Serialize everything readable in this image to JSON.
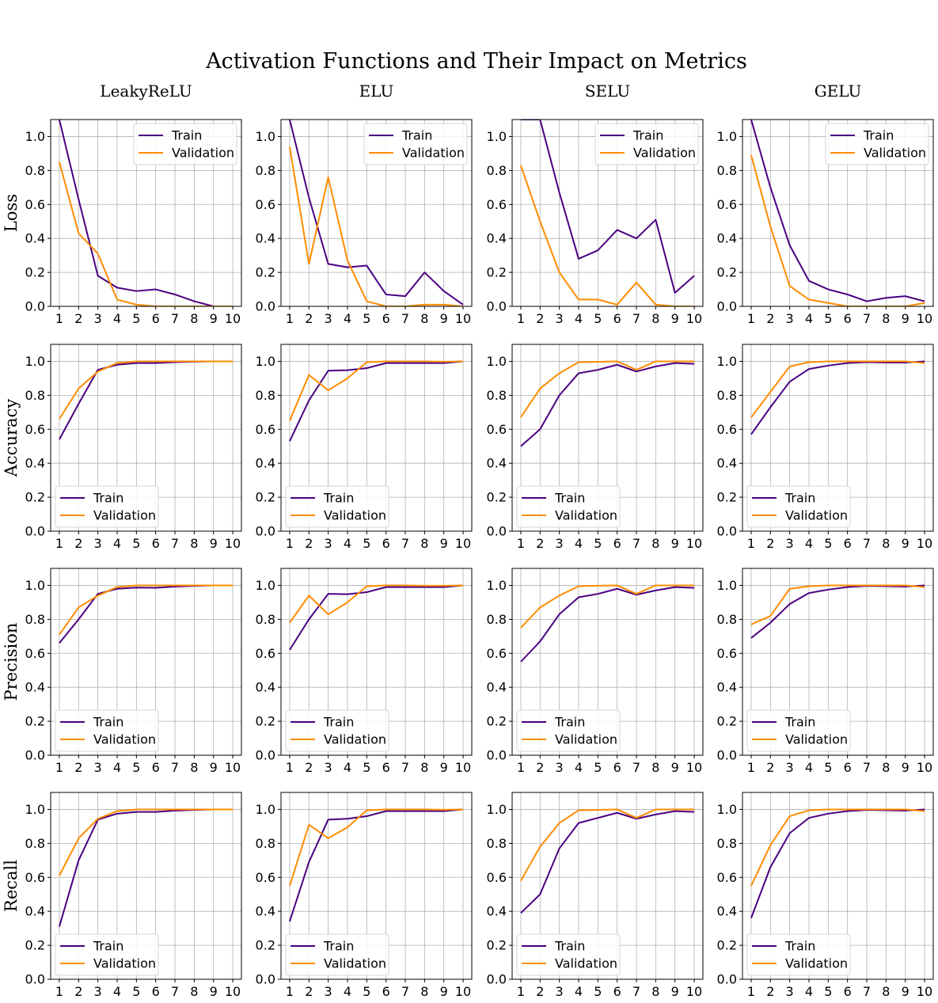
{
  "figure": {
    "title": "Activation Functions and Their Impact on Metrics",
    "columns": [
      "LeakyReLU",
      "ELU",
      "SELU",
      "GELU"
    ],
    "rows": [
      "Loss",
      "Accuracy",
      "Precision",
      "Recall"
    ]
  },
  "colors": {
    "train": "#4b0082",
    "validation": "#ff8c00",
    "grid": "#b0b0b0"
  },
  "legend": {
    "train": "Train",
    "validation": "Validation",
    "loss_position": "top-right",
    "other_position": "bottom-left"
  },
  "chart_data": [
    {
      "type": "line",
      "title": "LeakyReLU",
      "ylabel": "Loss",
      "x": [
        1,
        2,
        3,
        4,
        5,
        6,
        7,
        8,
        9,
        10
      ],
      "ylim": [
        0,
        1.1
      ],
      "grid": true,
      "series": [
        {
          "name": "Train",
          "values": [
            1.15,
            0.63,
            0.18,
            0.11,
            0.09,
            0.1,
            0.07,
            0.03,
            0.0,
            0.0
          ]
        },
        {
          "name": "Validation",
          "values": [
            0.85,
            0.43,
            0.31,
            0.04,
            0.01,
            0.0,
            0.0,
            0.0,
            0.0,
            0.0
          ]
        }
      ]
    },
    {
      "type": "line",
      "title": "ELU",
      "ylabel": "",
      "x": [
        1,
        2,
        3,
        4,
        5,
        6,
        7,
        8,
        9,
        10
      ],
      "ylim": [
        0,
        1.1
      ],
      "grid": true,
      "series": [
        {
          "name": "Train",
          "values": [
            1.2,
            0.64,
            0.25,
            0.23,
            0.24,
            0.07,
            0.06,
            0.2,
            0.09,
            0.01
          ]
        },
        {
          "name": "Validation",
          "values": [
            0.94,
            0.25,
            0.76,
            0.27,
            0.03,
            0.0,
            0.0,
            0.01,
            0.01,
            0.0
          ]
        }
      ]
    },
    {
      "type": "line",
      "title": "SELU",
      "ylabel": "",
      "x": [
        1,
        2,
        3,
        4,
        5,
        6,
        7,
        8,
        9,
        10
      ],
      "ylim": [
        0,
        1.1
      ],
      "grid": true,
      "series": [
        {
          "name": "Train",
          "values": [
            1.3,
            1.1,
            0.67,
            0.28,
            0.33,
            0.45,
            0.4,
            0.51,
            0.08,
            0.18
          ]
        },
        {
          "name": "Validation",
          "values": [
            0.83,
            0.5,
            0.2,
            0.04,
            0.04,
            0.01,
            0.14,
            0.01,
            0.0,
            0.0
          ]
        }
      ]
    },
    {
      "type": "line",
      "title": "GELU",
      "ylabel": "",
      "x": [
        1,
        2,
        3,
        4,
        5,
        6,
        7,
        8,
        9,
        10
      ],
      "ylim": [
        0,
        1.1
      ],
      "grid": true,
      "series": [
        {
          "name": "Train",
          "values": [
            1.15,
            0.7,
            0.36,
            0.15,
            0.1,
            0.07,
            0.03,
            0.05,
            0.06,
            0.03
          ]
        },
        {
          "name": "Validation",
          "values": [
            0.89,
            0.47,
            0.12,
            0.04,
            0.02,
            0.0,
            0.0,
            0.0,
            0.0,
            0.02
          ]
        }
      ]
    },
    {
      "type": "line",
      "title": "",
      "ylabel": "Accuracy",
      "x": [
        1,
        2,
        3,
        4,
        5,
        6,
        7,
        8,
        9,
        10
      ],
      "ylim": [
        0,
        1.1
      ],
      "grid": true,
      "series": [
        {
          "name": "Train",
          "values": [
            0.54,
            0.75,
            0.95,
            0.98,
            0.99,
            0.99,
            0.995,
            0.998,
            1.0,
            1.0
          ]
        },
        {
          "name": "Validation",
          "values": [
            0.66,
            0.84,
            0.94,
            0.99,
            1.0,
            1.0,
            1.0,
            1.0,
            1.0,
            1.0
          ]
        }
      ]
    },
    {
      "type": "line",
      "title": "",
      "ylabel": "",
      "x": [
        1,
        2,
        3,
        4,
        5,
        6,
        7,
        8,
        9,
        10
      ],
      "ylim": [
        0,
        1.1
      ],
      "grid": true,
      "series": [
        {
          "name": "Train",
          "values": [
            0.53,
            0.77,
            0.945,
            0.948,
            0.96,
            0.99,
            0.99,
            0.99,
            0.99,
            1.0
          ]
        },
        {
          "name": "Validation",
          "values": [
            0.65,
            0.92,
            0.83,
            0.9,
            0.995,
            1.0,
            1.0,
            1.0,
            0.998,
            1.0
          ]
        }
      ]
    },
    {
      "type": "line",
      "title": "",
      "ylabel": "",
      "x": [
        1,
        2,
        3,
        4,
        5,
        6,
        7,
        8,
        9,
        10
      ],
      "ylim": [
        0,
        1.1
      ],
      "grid": true,
      "series": [
        {
          "name": "Train",
          "values": [
            0.5,
            0.6,
            0.8,
            0.93,
            0.95,
            0.98,
            0.94,
            0.97,
            0.99,
            0.985
          ]
        },
        {
          "name": "Validation",
          "values": [
            0.67,
            0.84,
            0.93,
            0.995,
            0.997,
            1.0,
            0.95,
            1.0,
            1.0,
            1.0
          ]
        }
      ]
    },
    {
      "type": "line",
      "title": "",
      "ylabel": "",
      "x": [
        1,
        2,
        3,
        4,
        5,
        6,
        7,
        8,
        9,
        10
      ],
      "ylim": [
        0,
        1.1
      ],
      "grid": true,
      "series": [
        {
          "name": "Train",
          "values": [
            0.57,
            0.73,
            0.88,
            0.955,
            0.975,
            0.99,
            0.995,
            0.993,
            0.993,
            1.0
          ]
        },
        {
          "name": "Validation",
          "values": [
            0.67,
            0.82,
            0.97,
            0.995,
            1.0,
            1.0,
            1.0,
            1.0,
            1.0,
            0.99
          ]
        }
      ]
    },
    {
      "type": "line",
      "title": "",
      "ylabel": "Precision",
      "x": [
        1,
        2,
        3,
        4,
        5,
        6,
        7,
        8,
        9,
        10
      ],
      "ylim": [
        0,
        1.1
      ],
      "grid": true,
      "series": [
        {
          "name": "Train",
          "values": [
            0.66,
            0.8,
            0.95,
            0.98,
            0.987,
            0.986,
            0.993,
            0.997,
            1.0,
            1.0
          ]
        },
        {
          "name": "Validation",
          "values": [
            0.71,
            0.87,
            0.94,
            0.99,
            1.0,
            1.0,
            1.0,
            1.0,
            1.0,
            1.0
          ]
        }
      ]
    },
    {
      "type": "line",
      "title": "",
      "ylabel": "",
      "x": [
        1,
        2,
        3,
        4,
        5,
        6,
        7,
        8,
        9,
        10
      ],
      "ylim": [
        0,
        1.1
      ],
      "grid": true,
      "series": [
        {
          "name": "Train",
          "values": [
            0.62,
            0.8,
            0.95,
            0.948,
            0.96,
            0.99,
            0.99,
            0.99,
            0.99,
            1.0
          ]
        },
        {
          "name": "Validation",
          "values": [
            0.78,
            0.94,
            0.83,
            0.9,
            0.995,
            1.0,
            1.0,
            0.998,
            0.998,
            1.0
          ]
        }
      ]
    },
    {
      "type": "line",
      "title": "",
      "ylabel": "",
      "x": [
        1,
        2,
        3,
        4,
        5,
        6,
        7,
        8,
        9,
        10
      ],
      "ylim": [
        0,
        1.1
      ],
      "grid": true,
      "series": [
        {
          "name": "Train",
          "values": [
            0.55,
            0.67,
            0.83,
            0.93,
            0.95,
            0.98,
            0.945,
            0.97,
            0.99,
            0.985
          ]
        },
        {
          "name": "Validation",
          "values": [
            0.75,
            0.87,
            0.94,
            0.995,
            0.998,
            1.0,
            0.95,
            1.0,
            1.0,
            1.0
          ]
        }
      ]
    },
    {
      "type": "line",
      "title": "",
      "ylabel": "",
      "x": [
        1,
        2,
        3,
        4,
        5,
        6,
        7,
        8,
        9,
        10
      ],
      "ylim": [
        0,
        1.1
      ],
      "grid": true,
      "series": [
        {
          "name": "Train",
          "values": [
            0.69,
            0.78,
            0.89,
            0.955,
            0.975,
            0.99,
            0.997,
            0.995,
            0.993,
            1.0
          ]
        },
        {
          "name": "Validation",
          "values": [
            0.77,
            0.82,
            0.98,
            0.995,
            1.0,
            1.0,
            1.0,
            1.0,
            1.0,
            0.99
          ]
        }
      ]
    },
    {
      "type": "line",
      "title": "",
      "ylabel": "Recall",
      "x": [
        1,
        2,
        3,
        4,
        5,
        6,
        7,
        8,
        9,
        10
      ],
      "ylim": [
        0,
        1.1
      ],
      "grid": true,
      "series": [
        {
          "name": "Train",
          "values": [
            0.31,
            0.7,
            0.94,
            0.975,
            0.985,
            0.985,
            0.993,
            0.997,
            1.0,
            1.0
          ]
        },
        {
          "name": "Validation",
          "values": [
            0.61,
            0.83,
            0.945,
            0.99,
            1.0,
            1.0,
            1.0,
            1.0,
            1.0,
            1.0
          ]
        }
      ]
    },
    {
      "type": "line",
      "title": "",
      "ylabel": "",
      "x": [
        1,
        2,
        3,
        4,
        5,
        6,
        7,
        8,
        9,
        10
      ],
      "ylim": [
        0,
        1.1
      ],
      "grid": true,
      "series": [
        {
          "name": "Train",
          "values": [
            0.34,
            0.69,
            0.94,
            0.945,
            0.96,
            0.99,
            0.99,
            0.99,
            0.99,
            1.0
          ]
        },
        {
          "name": "Validation",
          "values": [
            0.55,
            0.91,
            0.83,
            0.895,
            0.995,
            1.0,
            1.0,
            1.0,
            0.998,
            1.0
          ]
        }
      ]
    },
    {
      "type": "line",
      "title": "",
      "ylabel": "",
      "x": [
        1,
        2,
        3,
        4,
        5,
        6,
        7,
        8,
        9,
        10
      ],
      "ylim": [
        0,
        1.1
      ],
      "grid": true,
      "series": [
        {
          "name": "Train",
          "values": [
            0.39,
            0.5,
            0.77,
            0.92,
            0.95,
            0.98,
            0.945,
            0.97,
            0.99,
            0.985
          ]
        },
        {
          "name": "Validation",
          "values": [
            0.58,
            0.78,
            0.92,
            0.995,
            0.997,
            1.0,
            0.95,
            1.0,
            1.0,
            1.0
          ]
        }
      ]
    },
    {
      "type": "line",
      "title": "",
      "ylabel": "",
      "x": [
        1,
        2,
        3,
        4,
        5,
        6,
        7,
        8,
        9,
        10
      ],
      "ylim": [
        0,
        1.1
      ],
      "grid": true,
      "series": [
        {
          "name": "Train",
          "values": [
            0.36,
            0.66,
            0.86,
            0.95,
            0.975,
            0.99,
            0.997,
            0.995,
            0.993,
            1.0
          ]
        },
        {
          "name": "Validation",
          "values": [
            0.55,
            0.79,
            0.96,
            0.995,
            1.0,
            1.0,
            1.0,
            1.0,
            1.0,
            0.99
          ]
        }
      ]
    }
  ]
}
